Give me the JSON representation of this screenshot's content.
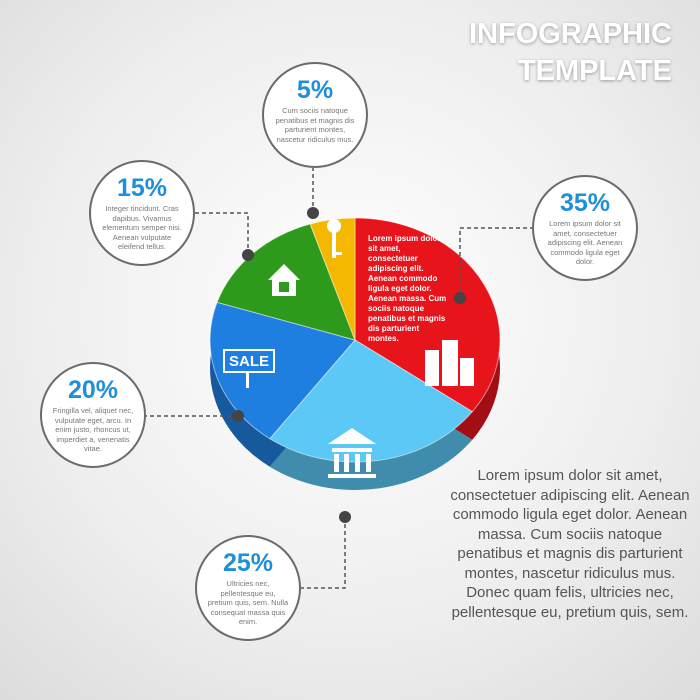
{
  "chart_data": {
    "type": "pie",
    "title": [
      "INFOGRAPHIC",
      "TEMPLATE"
    ],
    "values": [
      35,
      25,
      20,
      15,
      5
    ],
    "value_labels": [
      "35%",
      "25%",
      "20%",
      "15%",
      "5%"
    ],
    "colors": [
      "#e8141b",
      "#5cc8f5",
      "#1f7fe0",
      "#2e9a1c",
      "#f5b800"
    ],
    "descriptions": [
      "Lorem ipsum dolor sit amet, consectetuer adipiscing elit. Aenean commodo ligula eget dolor.",
      "Ultricies nec, pellentesque eu, pretium quis, sem. Nulla consequat massa quis enim.",
      "Fringilla vel, aliquet nec, vulputate eget, arcu. In enim justo, rhoncus ut, imperdiet a, venenatis vitae.",
      "Integer tincidunt. Cras dapibus. Vivamus elementum semper nisi. Aenean vulputate eleifend tellus.",
      "Cum sociis natoque penatibus et magnis dis parturient montes, nascetur ridiculus mus."
    ],
    "slice_text": "Lorem ipsum dolor sit amet, consectetuer adipiscing elit. Aenean commodo ligula eget dolor. Aenean massa. Cum sociis natoque penatibus et magnis dis parturient montes.",
    "sign_text": "SALE",
    "paragraph": "Lorem ipsum dolor sit amet, consectetuer adipiscing elit. Aenean commodo ligula eget dolor. Aenean massa. Cum sociis natoque penatibus et magnis dis parturient montes, nascetur ridiculus mus. Donec quam felis, ultricies nec, pellentesque eu, pretium quis, sem."
  }
}
